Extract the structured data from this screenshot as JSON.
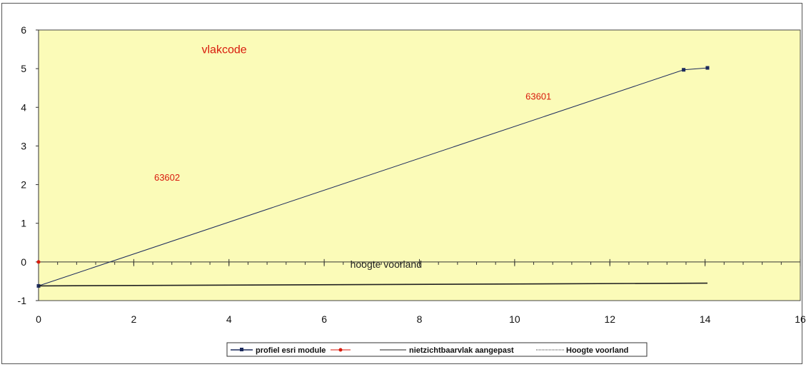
{
  "chart_data": {
    "type": "line",
    "title": "",
    "xlabel": "",
    "ylabel": "",
    "xlim": [
      0,
      16
    ],
    "ylim": [
      -1,
      6
    ],
    "xticks": [
      0,
      2,
      4,
      6,
      8,
      10,
      12,
      14,
      16
    ],
    "yticks": [
      -1,
      0,
      1,
      2,
      3,
      4,
      5,
      6
    ],
    "plot_background": "#fbfbb8",
    "series": [
      {
        "name": "profiel esri module",
        "color": "#1b2a5c",
        "marker": "square",
        "x": [
          0,
          13.55,
          14.05
        ],
        "y": [
          -0.62,
          4.97,
          5.02
        ]
      },
      {
        "name": "",
        "color": "#d81a0c",
        "marker": "circle",
        "x": [
          0
        ],
        "y": [
          0
        ]
      },
      {
        "name": "nietzichtbaarvlak aangepast",
        "color": "#222222",
        "marker": "none",
        "x": [
          0,
          14.05
        ],
        "y": [
          -0.62,
          -0.55
        ]
      },
      {
        "name": "Hoogte voorland",
        "color": "#555555",
        "marker": "none",
        "style": "dotted",
        "x": [
          0,
          16
        ],
        "y": [
          0,
          0
        ]
      }
    ],
    "annotations": [
      {
        "text": "vlakcode",
        "x": 3.9,
        "y": 5.4,
        "color": "#d81a0c"
      },
      {
        "text": "63601",
        "x": 10.5,
        "y": 4.2,
        "color": "#d81a0c"
      },
      {
        "text": "63602",
        "x": 2.7,
        "y": 2.1,
        "color": "#d81a0c"
      },
      {
        "text": "hoogte voorland",
        "x": 7.3,
        "y": -0.15,
        "color": "#222222"
      }
    ],
    "legend_position": "bottom",
    "grid": false
  }
}
